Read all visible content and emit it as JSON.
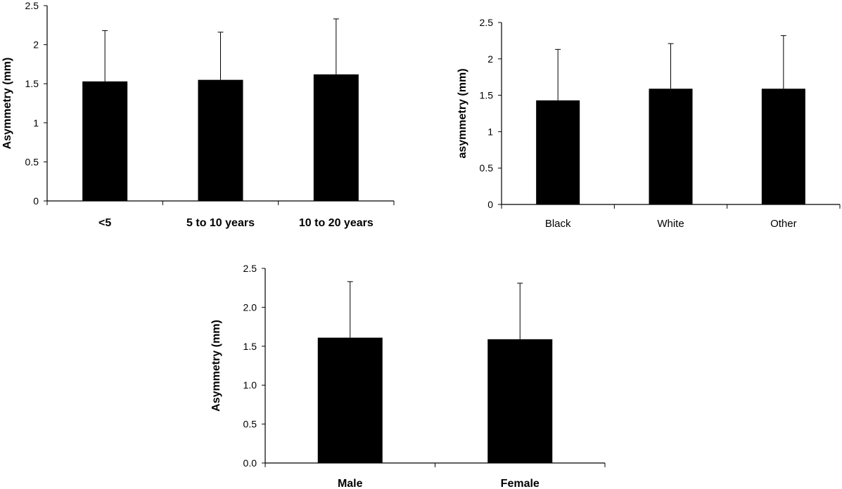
{
  "chart_data": [
    {
      "type": "bar",
      "categories": [
        "<5",
        "5 to 10 years",
        "10 to 20 years"
      ],
      "values": [
        1.53,
        1.55,
        1.62
      ],
      "error_upper": [
        2.18,
        2.16,
        2.33
      ],
      "ylabel": "Asymmetry (mm)",
      "xlabel": "",
      "ylim": [
        0,
        2.5
      ],
      "yticks": [
        "0",
        "0.5",
        "1",
        "1.5",
        "2",
        "2.5"
      ],
      "bar_color": "#000000",
      "grid": false
    },
    {
      "type": "bar",
      "categories": [
        "Black",
        "White",
        "Other"
      ],
      "values": [
        1.43,
        1.59,
        1.59
      ],
      "error_upper": [
        2.13,
        2.21,
        2.32
      ],
      "ylabel": "asymmetry (mm)",
      "xlabel": "",
      "ylim": [
        0,
        2.5
      ],
      "yticks": [
        "0",
        "0.5",
        "1",
        "1.5",
        "2",
        "2.5"
      ],
      "bar_color": "#000000",
      "grid": false
    },
    {
      "type": "bar",
      "categories": [
        "Male",
        "Female"
      ],
      "values": [
        1.61,
        1.59
      ],
      "error_upper": [
        2.33,
        2.31
      ],
      "ylabel": "Asymmetry (mm)",
      "xlabel": "",
      "ylim": [
        0,
        2.5
      ],
      "yticks": [
        "0.0",
        "0.5",
        "1.0",
        "1.5",
        "2.0",
        "2.5"
      ],
      "bar_color": "#000000",
      "grid": false
    }
  ]
}
